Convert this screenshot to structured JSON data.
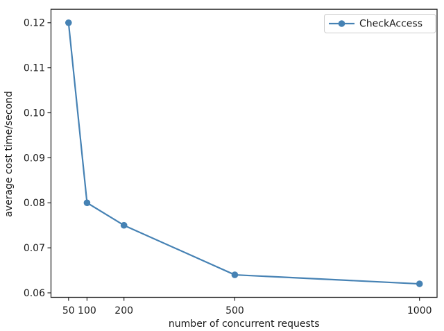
{
  "figure": {
    "background": "#ffffff"
  },
  "chart_data": {
    "type": "line",
    "title": "",
    "xlabel": "number of concurrent requests",
    "ylabel": "average cost time/second",
    "x": [
      50,
      100,
      200,
      500,
      1000
    ],
    "series": [
      {
        "name": "CheckAccess",
        "values": [
          0.12,
          0.08,
          0.075,
          0.064,
          0.062
        ],
        "color": "#4682b4",
        "marker": "circle",
        "line_width": 2.2,
        "marker_radius": 4.8
      }
    ],
    "xticks": [
      50,
      100,
      200,
      500,
      1000
    ],
    "yticks": [
      0.06,
      0.07,
      0.08,
      0.09,
      0.1,
      0.11,
      0.12
    ],
    "ytick_decimals": 2,
    "xlim": [
      2.5,
      1047.5
    ],
    "ylim": [
      0.059,
      0.123
    ],
    "grid": false,
    "legend": {
      "position": "upper right",
      "entries": [
        "CheckAccess"
      ]
    },
    "colors": {
      "spine": "#262626",
      "tick": "#262626",
      "text": "#1a1a1a",
      "legend_border": "#cccccc",
      "legend_background": "#ffffff"
    }
  }
}
